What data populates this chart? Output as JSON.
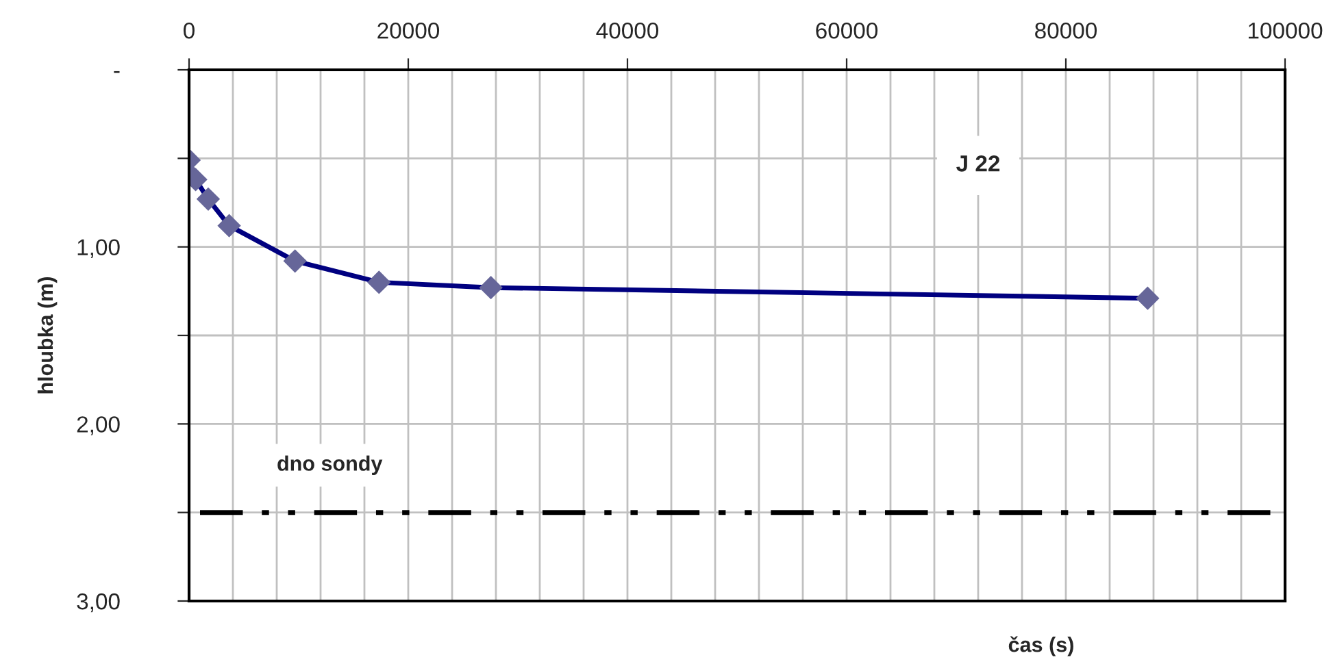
{
  "chart_data": {
    "type": "line",
    "xlabel": "čas (s)",
    "ylabel": "hloubka (m)",
    "x": [
      0,
      60,
      600,
      1750,
      3660,
      9670,
      17330,
      27540,
      87460
    ],
    "series": [
      {
        "color": "#000080",
        "values": [
          0.51,
          0.59,
          0.62,
          0.73,
          0.88,
          1.08,
          1.2,
          1.23,
          1.29
        ]
      }
    ],
    "marker": "diamond",
    "line_style": "solid",
    "xlim": [
      0,
      100000
    ],
    "xticks": [
      0,
      {
        "value": 4000,
        "label": null
      },
      {
        "value": 8000,
        "label": null
      },
      {
        "value": 12000,
        "label": null
      },
      {
        "value": 16000,
        "label": null
      },
      20000,
      {
        "value": 24000,
        "label": null
      },
      {
        "value": 28000,
        "label": null
      },
      {
        "value": 32000,
        "label": null
      },
      {
        "value": 36000,
        "label": null
      },
      40000,
      {
        "value": 44000,
        "label": null
      },
      {
        "value": 48000,
        "label": null
      },
      {
        "value": 52000,
        "label": null
      },
      {
        "value": 56000,
        "label": null
      },
      60000,
      {
        "value": 64000,
        "label": null
      },
      {
        "value": 68000,
        "label": null
      },
      {
        "value": 72000,
        "label": null
      },
      {
        "value": 76000,
        "label": null
      },
      80000,
      {
        "value": 84000,
        "label": null
      },
      {
        "value": 88000,
        "label": null
      },
      {
        "value": 92000,
        "label": null
      },
      {
        "value": 96000,
        "label": null
      },
      100000
    ],
    "ylim": [
      3,
      0
    ],
    "yticks": [
      {
        "value": 0,
        "label": "-"
      },
      {
        "value": 0.5,
        "label": null
      },
      {
        "value": 1,
        "label": "1,00"
      },
      {
        "value": 1.5,
        "label": null
      },
      {
        "value": 2,
        "label": "2,00"
      },
      {
        "value": 2.5,
        "label": null
      },
      {
        "value": 3,
        "label": "3,00"
      }
    ],
    "grid": true,
    "ref_lines": [
      {
        "axis": "y",
        "value": 2.5,
        "label": "dno sondy",
        "color": "#000000",
        "line_style": "dashdotdot"
      }
    ],
    "annotations": [
      "J 22"
    ]
  }
}
